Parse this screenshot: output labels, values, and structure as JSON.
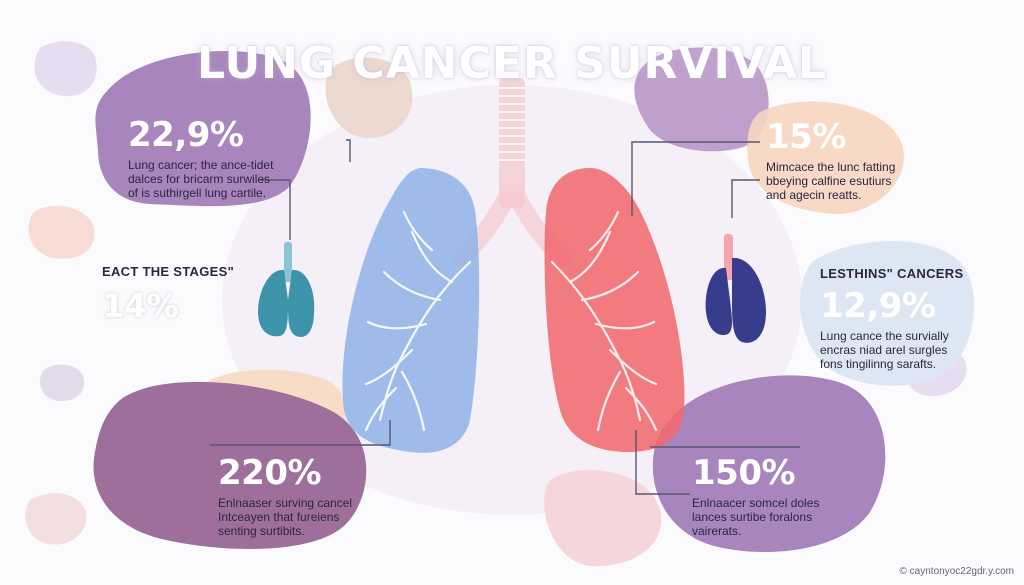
{
  "title": "LUNG CANCER SURVIVAL",
  "stats": {
    "top_left": {
      "value": "22,9%",
      "text": "Lung cancer; the ance-tidet\ndalces for bricarm surwiles\nof is suthirgell lung cartile."
    },
    "mid_left": {
      "heading": "EACT THE STAGES\"",
      "value": "14%"
    },
    "bottom_left": {
      "value": "220%",
      "text": "Enlnaaser surving cancel\nIntceayen that fureiens\nsenting surtibits."
    },
    "top_right": {
      "value": "15%",
      "text": "Mimcace the lunc fatting\nbbeying calfine esutiurs\nand agecin reatts."
    },
    "mid_right": {
      "heading": "LESTHINS\" CANCERS",
      "value": "12,9%",
      "text": "Lung cance the survially\nencras niad arel surgles\nfons tingilinng sarafts."
    },
    "bottom_right": {
      "value": "150%",
      "text": "Enlnaacer somcel doles\nlances surtibe foralons\nvairerats."
    }
  },
  "credit": "© cayntonyoc22gdr.y.com",
  "colors": {
    "lilac": "#a985bd",
    "mauve": "#9d6f9a",
    "peach": "#f3d3bd",
    "blue_lung": "#8fb2e6",
    "red_lung": "#f06a6e",
    "teal": "#3d93a9",
    "navy": "#373c8d"
  }
}
